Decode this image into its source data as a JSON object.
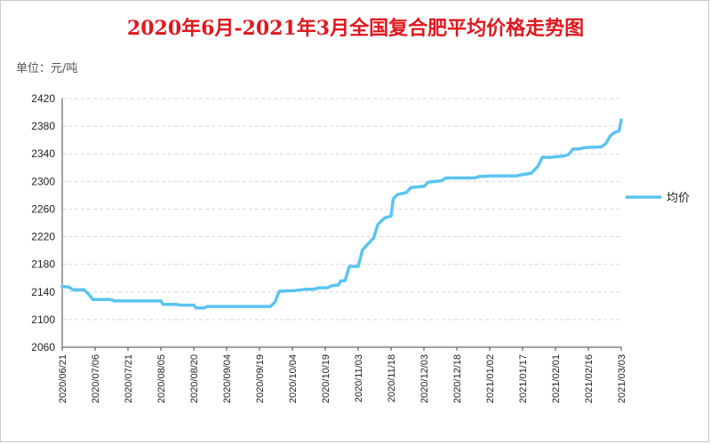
{
  "chart_data": {
    "type": "line",
    "title": "2020年6月-2021年3月全国复合肥平均价格走势图",
    "unit_label": "单位：元/吨",
    "xlabel": "",
    "ylabel": "",
    "ylim": [
      2060,
      2420
    ],
    "y_ticks": [
      2060,
      2100,
      2140,
      2180,
      2220,
      2260,
      2300,
      2340,
      2380,
      2420
    ],
    "x_tick_labels": [
      "2020/06/21",
      "2020/07/06",
      "2020/07/21",
      "2020/08/05",
      "2020/08/20",
      "2020/09/04",
      "2020/09/19",
      "2020/10/04",
      "2020/10/19",
      "2020/11/03",
      "2020/11/18",
      "2020/12/03",
      "2020/12/18",
      "2021/01/02",
      "2021/01/17",
      "2021/02/01",
      "2021/02/16",
      "2021/03/03"
    ],
    "grid": "horizontal",
    "legend_position": "right",
    "colors": {
      "series": "#5bc4f1",
      "title": "#e0181f",
      "grid": "#d9d9d9",
      "axis": "#444444"
    },
    "series": [
      {
        "name": "均价",
        "points": [
          [
            "2020/06/21",
            2148
          ],
          [
            "2020/06/24",
            2147
          ],
          [
            "2020/06/26",
            2143
          ],
          [
            "2020/07/01",
            2143
          ],
          [
            "2020/07/03",
            2137
          ],
          [
            "2020/07/05",
            2129
          ],
          [
            "2020/07/13",
            2129
          ],
          [
            "2020/07/15",
            2127
          ],
          [
            "2020/08/05",
            2127
          ],
          [
            "2020/08/06",
            2122
          ],
          [
            "2020/08/12",
            2122
          ],
          [
            "2020/08/14",
            2121
          ],
          [
            "2020/08/20",
            2121
          ],
          [
            "2020/08/21",
            2117
          ],
          [
            "2020/08/25",
            2117
          ],
          [
            "2020/08/26",
            2119
          ],
          [
            "2020/09/24",
            2119
          ],
          [
            "2020/09/26",
            2125
          ],
          [
            "2020/09/28",
            2141
          ],
          [
            "2020/10/05",
            2142
          ],
          [
            "2020/10/10",
            2144
          ],
          [
            "2020/10/14",
            2144
          ],
          [
            "2020/10/16",
            2146
          ],
          [
            "2020/10/20",
            2146
          ],
          [
            "2020/10/22",
            2149
          ],
          [
            "2020/10/25",
            2150
          ],
          [
            "2020/10/26",
            2156
          ],
          [
            "2020/10/28",
            2156
          ],
          [
            "2020/10/30",
            2177
          ],
          [
            "2020/11/03",
            2177
          ],
          [
            "2020/11/05",
            2201
          ],
          [
            "2020/11/07",
            2208
          ],
          [
            "2020/11/10",
            2218
          ],
          [
            "2020/11/12",
            2238
          ],
          [
            "2020/11/15",
            2247
          ],
          [
            "2020/11/18",
            2250
          ],
          [
            "2020/11/19",
            2275
          ],
          [
            "2020/11/21",
            2281
          ],
          [
            "2020/11/25",
            2284
          ],
          [
            "2020/11/27",
            2291
          ],
          [
            "2020/12/03",
            2293
          ],
          [
            "2020/12/05",
            2299
          ],
          [
            "2020/12/11",
            2301
          ],
          [
            "2020/12/13",
            2305
          ],
          [
            "2020/12/26",
            2305
          ],
          [
            "2020/12/28",
            2307
          ],
          [
            "2021/01/02",
            2308
          ],
          [
            "2021/01/14",
            2308
          ],
          [
            "2021/01/17",
            2310
          ],
          [
            "2021/01/21",
            2312
          ],
          [
            "2021/01/24",
            2322
          ],
          [
            "2021/01/26",
            2335
          ],
          [
            "2021/01/30",
            2335
          ],
          [
            "2021/02/05",
            2337
          ],
          [
            "2021/02/07",
            2339
          ],
          [
            "2021/02/09",
            2347
          ],
          [
            "2021/02/12",
            2347
          ],
          [
            "2021/02/14",
            2349
          ],
          [
            "2021/02/22",
            2350
          ],
          [
            "2021/02/24",
            2355
          ],
          [
            "2021/02/26",
            2366
          ],
          [
            "2021/02/28",
            2371
          ],
          [
            "2021/03/02",
            2373
          ],
          [
            "2021/03/03",
            2389
          ]
        ]
      }
    ]
  }
}
